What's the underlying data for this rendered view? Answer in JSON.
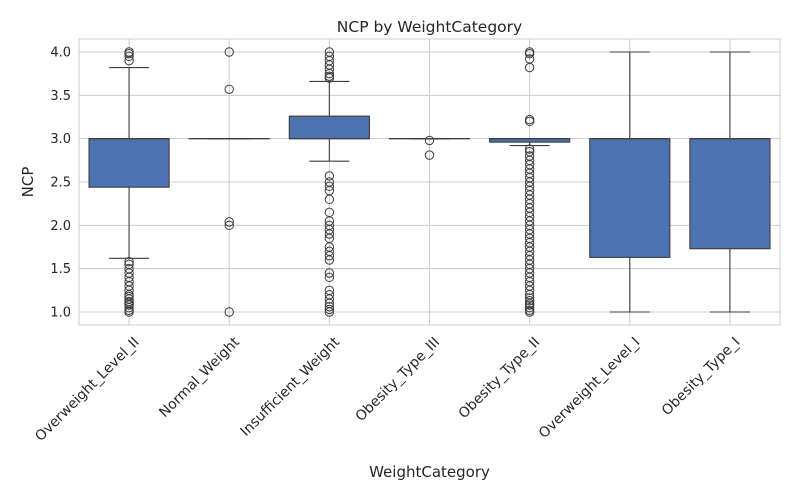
{
  "chart_data": {
    "type": "box",
    "title": "NCP by WeightCategory",
    "xlabel": "WeightCategory",
    "ylabel": "NCP",
    "ylim": [
      0.85,
      4.15
    ],
    "yticks": [
      1.0,
      1.5,
      2.0,
      2.5,
      3.0,
      3.5,
      4.0
    ],
    "ytick_labels": [
      "1.0",
      "1.5",
      "2.0",
      "2.5",
      "3.0",
      "3.5",
      "4.0"
    ],
    "grid": true,
    "box_color": "#4c72b0",
    "categories": [
      "Overweight_Level_II",
      "Normal_Weight",
      "Insufficient_Weight",
      "Obesity_Type_III",
      "Obesity_Type_II",
      "Overweight_Level_I",
      "Obesity_Type_I"
    ],
    "boxes": [
      {
        "category": "Overweight_Level_II",
        "whisker_low": 1.62,
        "q1": 2.44,
        "median": 3.0,
        "q3": 3.0,
        "whisker_high": 3.82,
        "outliers": [
          1.0,
          1.02,
          1.05,
          1.08,
          1.1,
          1.12,
          1.15,
          1.18,
          1.2,
          1.25,
          1.3,
          1.35,
          1.4,
          1.45,
          1.5,
          1.55,
          1.58,
          3.9,
          3.95,
          3.98,
          4.0
        ]
      },
      {
        "category": "Normal_Weight",
        "whisker_low": 3.0,
        "q1": 3.0,
        "median": 3.0,
        "q3": 3.0,
        "whisker_high": 3.0,
        "outliers": [
          1.0,
          2.0,
          2.04,
          3.57,
          4.0
        ]
      },
      {
        "category": "Insufficient_Weight",
        "whisker_low": 2.74,
        "q1": 3.0,
        "median": 3.0,
        "q3": 3.26,
        "whisker_high": 3.66,
        "outliers": [
          1.0,
          1.03,
          1.06,
          1.1,
          1.15,
          1.2,
          1.25,
          1.4,
          1.45,
          1.6,
          1.65,
          1.7,
          1.75,
          1.85,
          1.9,
          1.95,
          2.0,
          2.05,
          2.15,
          2.3,
          2.4,
          2.45,
          2.5,
          2.57,
          3.7,
          3.72,
          3.75,
          3.8,
          3.85,
          3.9,
          3.95,
          4.0
        ]
      },
      {
        "category": "Obesity_Type_III",
        "whisker_low": 3.0,
        "q1": 3.0,
        "median": 3.0,
        "q3": 3.0,
        "whisker_high": 3.0,
        "outliers": [
          2.81,
          2.98
        ]
      },
      {
        "category": "Obesity_Type_II",
        "whisker_low": 2.92,
        "q1": 2.96,
        "median": 3.0,
        "q3": 3.0,
        "whisker_high": 3.0,
        "outliers": [
          1.0,
          1.02,
          1.05,
          1.08,
          1.1,
          1.13,
          1.16,
          1.2,
          1.25,
          1.3,
          1.35,
          1.4,
          1.45,
          1.5,
          1.55,
          1.6,
          1.65,
          1.7,
          1.75,
          1.8,
          1.85,
          1.9,
          1.95,
          2.0,
          2.05,
          2.1,
          2.15,
          2.2,
          2.25,
          2.3,
          2.35,
          2.4,
          2.45,
          2.5,
          2.55,
          2.6,
          2.65,
          2.7,
          2.75,
          2.8,
          2.85,
          2.88,
          3.2,
          3.22,
          3.82,
          3.92,
          3.98,
          4.0
        ]
      },
      {
        "category": "Overweight_Level_I",
        "whisker_low": 1.0,
        "q1": 1.63,
        "median": 3.0,
        "q3": 3.0,
        "whisker_high": 4.0,
        "outliers": []
      },
      {
        "category": "Obesity_Type_I",
        "whisker_low": 1.0,
        "q1": 1.73,
        "median": 3.0,
        "q3": 3.0,
        "whisker_high": 4.0,
        "outliers": []
      }
    ]
  }
}
